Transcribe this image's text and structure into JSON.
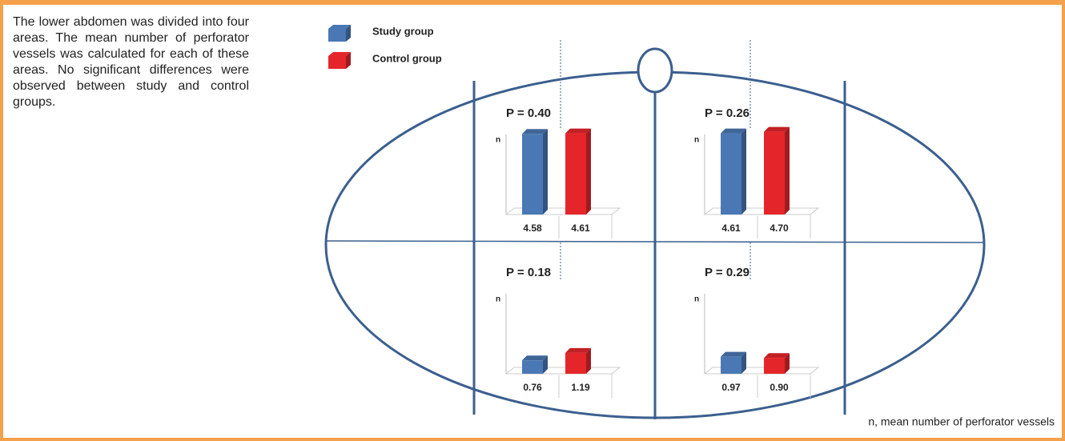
{
  "caption": "The lower abdomen was divided into four areas. The mean number of perforator vessels was calculated for each of these areas. No significant differences were observed between study and control groups.",
  "footnote": "n, mean number of perforator vessels",
  "legend": [
    {
      "name": "Study group",
      "color": "#4a78b4"
    },
    {
      "name": "Control group",
      "color": "#e4262b"
    }
  ],
  "chart_data": [
    {
      "type": "bar",
      "title": "P = 0.40",
      "y_label": "n",
      "categories": [
        null,
        null
      ],
      "values": [
        4.58,
        4.61
      ],
      "value_labels": [
        "4.58",
        "4.61"
      ],
      "ylim": [
        0,
        5.5
      ]
    },
    {
      "type": "bar",
      "title": "P = 0.26",
      "y_label": "n",
      "categories": [
        null,
        null
      ],
      "values": [
        4.61,
        4.7
      ],
      "value_labels": [
        "4.61",
        "4.70"
      ],
      "ylim": [
        0,
        5.5
      ]
    },
    {
      "type": "bar",
      "title": "P = 0.18",
      "y_label": "n",
      "categories": [
        null,
        null
      ],
      "values": [
        0.76,
        1.19
      ],
      "value_labels": [
        "0.76",
        "1.19"
      ],
      "ylim": [
        0,
        5.5
      ]
    },
    {
      "type": "bar",
      "title": "P = 0.29",
      "y_label": "n",
      "categories": [
        null,
        null
      ],
      "values": [
        0.97,
        0.9
      ],
      "value_labels": [
        "0.97",
        "0.90"
      ],
      "ylim": [
        0,
        5.5
      ]
    }
  ]
}
